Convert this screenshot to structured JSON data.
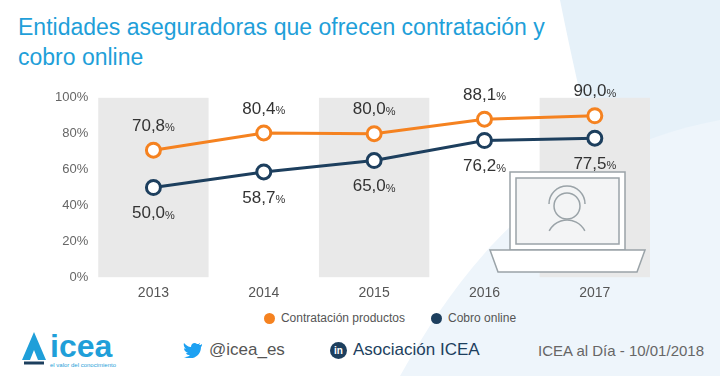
{
  "chart_data": {
    "type": "line",
    "title": "Entidades aseguradoras que ofrecen contratación y cobro online",
    "categories": [
      "2013",
      "2014",
      "2015",
      "2016",
      "2017"
    ],
    "series": [
      {
        "name": "Contratación productos",
        "color": "#f58220",
        "marker": "circle",
        "values": [
          70.8,
          80.4,
          80.0,
          88.1,
          90.0
        ],
        "value_labels": [
          "70,8%",
          "80,4%",
          "80,0%",
          "88,1%",
          "90,0%"
        ]
      },
      {
        "name": "Cobro online",
        "color": "#1d3f5e",
        "marker": "circle",
        "values": [
          50.0,
          58.7,
          65.0,
          76.2,
          77.5
        ],
        "value_labels": [
          "50,0%",
          "58,7%",
          "65,0%",
          "76,2%",
          "77,5%"
        ]
      }
    ],
    "ylim": [
      0,
      100
    ],
    "yticks": [
      {
        "value": 0,
        "label": "0%"
      },
      {
        "value": 20,
        "label": "20%"
      },
      {
        "value": 40,
        "label": "40%"
      },
      {
        "value": 60,
        "label": "60%"
      },
      {
        "value": 80,
        "label": "80%"
      },
      {
        "value": 100,
        "label": "100%"
      }
    ],
    "grid": false,
    "legend": "bottom",
    "data_labels": true
  },
  "footer": {
    "logo": "icea",
    "tagline": "el valor del conocimiento",
    "twitter": "@icea_es",
    "linkedin": {
      "icon": "in",
      "text": "Asociación ICEA"
    },
    "source": "ICEA al Día - 10/01/2018"
  }
}
